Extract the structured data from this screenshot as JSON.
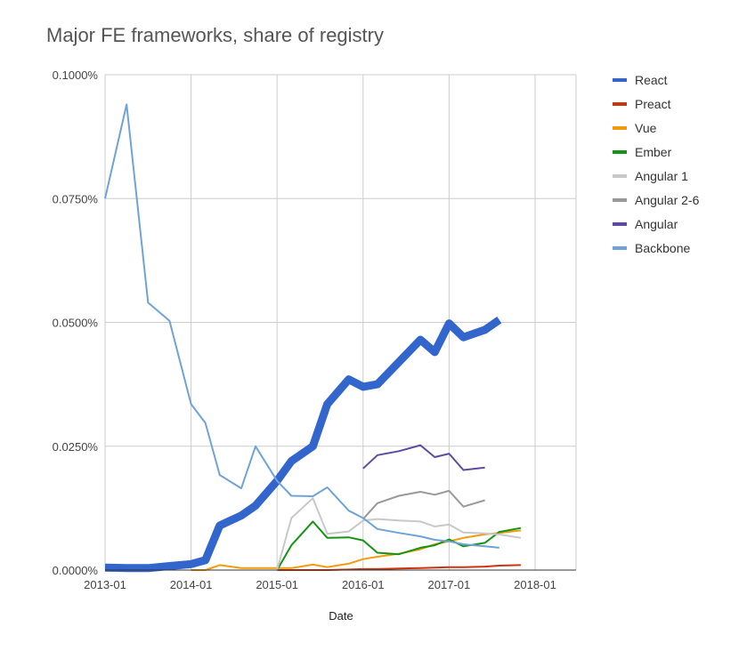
{
  "chart_data": {
    "type": "line",
    "title": "Major FE frameworks, share of registry",
    "xlabel": "Date",
    "ylabel": "",
    "ylim": [
      0,
      0.1
    ],
    "y_ticks": [
      {
        "value": 0,
        "label": "0.0000%"
      },
      {
        "value": 0.025,
        "label": "0.0250%"
      },
      {
        "value": 0.05,
        "label": "0.0500%"
      },
      {
        "value": 0.075,
        "label": "0.0750%"
      },
      {
        "value": 0.1,
        "label": "0.1000%"
      }
    ],
    "x_ticks": [
      "2013-01",
      "2014-01",
      "2015-01",
      "2016-01",
      "2017-01",
      "2018-01"
    ],
    "x": [
      "2013-01",
      "2013-04",
      "2013-07",
      "2013-10",
      "2014-01",
      "2014-03",
      "2014-05",
      "2014-08",
      "2014-10",
      "2015-01",
      "2015-03",
      "2015-06",
      "2015-08",
      "2015-11",
      "2016-01",
      "2016-03",
      "2016-06",
      "2016-09",
      "2016-11",
      "2017-01",
      "2017-03",
      "2017-06",
      "2017-08",
      "2017-11",
      "2018-01",
      "2018-04",
      "2018-06"
    ],
    "legend_position": "right",
    "grid": true,
    "series": [
      {
        "name": "React",
        "color": "#3366cc",
        "width": 9,
        "values": [
          0.0005,
          0.0004,
          0.0004,
          0.0008,
          0.0012,
          0.002,
          0.009,
          0.011,
          0.013,
          0.018,
          0.022,
          0.025,
          0.0335,
          0.0385,
          0.037,
          0.0375,
          0.042,
          0.0465,
          0.044,
          0.0498,
          0.047,
          0.0485,
          0.0505,
          null,
          null,
          null,
          null
        ]
      },
      {
        "name": "Preact",
        "color": "#cc3311",
        "width": 2,
        "values": [
          null,
          null,
          null,
          null,
          null,
          null,
          null,
          null,
          null,
          0,
          0,
          0,
          0,
          0.0001,
          0.0002,
          0.0002,
          0.0003,
          0.0004,
          0.0005,
          0.0006,
          0.0006,
          0.0007,
          0.0009,
          0.001,
          null,
          null,
          null
        ]
      },
      {
        "name": "Vue",
        "color": "#f29b0c",
        "width": 2,
        "values": [
          null,
          null,
          null,
          null,
          0,
          0,
          0.001,
          0.0004,
          0.0004,
          0.0004,
          0.0004,
          0.0011,
          0.0006,
          0.0013,
          0.0022,
          0.0027,
          0.0033,
          0.0042,
          0.0052,
          0.0058,
          0.0065,
          0.0072,
          0.0075,
          0.008,
          null,
          null,
          null
        ]
      },
      {
        "name": "Ember",
        "color": "#149414",
        "width": 2,
        "values": [
          null,
          null,
          null,
          null,
          null,
          null,
          null,
          null,
          null,
          0,
          0.005,
          0.0098,
          0.0065,
          0.0066,
          0.006,
          0.0035,
          0.0032,
          0.0045,
          0.005,
          0.0062,
          0.0048,
          0.0055,
          0.0077,
          0.0085,
          null,
          null,
          null
        ]
      },
      {
        "name": "Angular 1",
        "color": "#c8c8c8",
        "width": 2,
        "values": [
          null,
          null,
          null,
          null,
          null,
          null,
          null,
          null,
          null,
          0,
          0.0105,
          0.0145,
          0.0073,
          0.0078,
          0.01,
          0.0103,
          0.01,
          0.0098,
          0.0088,
          0.0092,
          0.0076,
          0.0074,
          0.0072,
          0.0065,
          null,
          null,
          null
        ]
      },
      {
        "name": "Angular 2-6",
        "color": "#999999",
        "width": 2,
        "values": [
          null,
          null,
          null,
          null,
          null,
          null,
          null,
          null,
          null,
          null,
          null,
          null,
          null,
          null,
          0.0103,
          0.0135,
          0.015,
          0.0158,
          0.0152,
          0.016,
          0.0128,
          0.0141,
          null,
          null,
          null,
          null,
          null
        ]
      },
      {
        "name": "Angular",
        "color": "#5e4aa0",
        "width": 2,
        "values": [
          null,
          null,
          null,
          null,
          null,
          null,
          null,
          null,
          null,
          null,
          null,
          null,
          null,
          null,
          0.0205,
          0.0232,
          0.024,
          0.0252,
          0.0228,
          0.0235,
          0.0202,
          0.0207,
          null,
          null,
          null,
          null,
          null
        ]
      },
      {
        "name": "Backbone",
        "color": "#6fa3d8",
        "width": 2,
        "values": [
          0.075,
          0.094,
          0.054,
          0.0503,
          0.0335,
          0.0297,
          0.0192,
          0.0165,
          0.025,
          0.018,
          0.015,
          0.0149,
          0.0167,
          0.012,
          0.0105,
          0.0083,
          0.0075,
          0.0068,
          0.0061,
          0.0058,
          0.0052,
          0.0048,
          0.0045,
          null,
          null,
          null,
          null
        ]
      }
    ]
  }
}
